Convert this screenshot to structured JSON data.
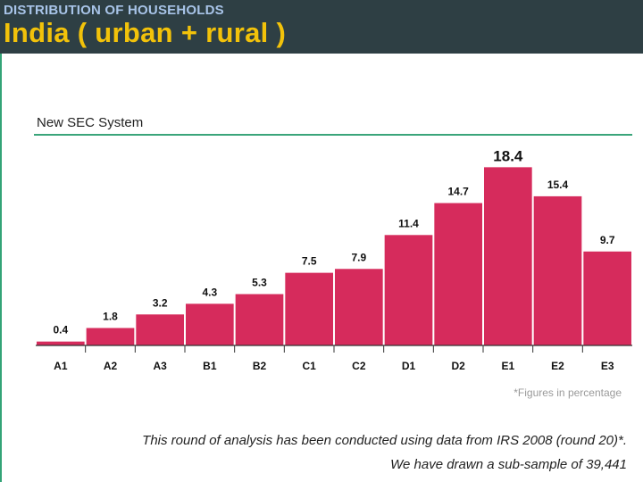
{
  "header": {
    "subtitle": "DISTRIBUTION OF HOUSEHOLDS",
    "title": "India ( urban + rural )"
  },
  "section_title": "New SEC System",
  "footnote": "*Figures in percentage",
  "captions": [
    "This round of analysis has been conducted using data from IRS 2008 (round 20)*.",
    "We have drawn a sub-sample of 39,441"
  ],
  "colors": {
    "bar": "#d62b5c",
    "header_bg": "#2e3f44",
    "accent_green": "#3aa57a",
    "title_yellow": "#f2c20a"
  },
  "chart_data": {
    "type": "bar",
    "title": "New SEC System",
    "xlabel": "",
    "ylabel": "",
    "unit": "percentage",
    "ylim": [
      0,
      20
    ],
    "categories": [
      "A1",
      "A2",
      "A3",
      "B1",
      "B2",
      "C1",
      "C2",
      "D1",
      "D2",
      "E1",
      "E2",
      "E3"
    ],
    "values": [
      0.4,
      1.8,
      3.2,
      4.3,
      5.3,
      7.5,
      7.9,
      11.4,
      14.7,
      18.4,
      15.4,
      9.7
    ],
    "labels": [
      "0.4",
      "1.8",
      "3.2",
      "4.3",
      "5.3",
      "7.5",
      "7.9",
      "11.4",
      "14.7",
      "18.4",
      "15.4",
      "9.7"
    ],
    "highlight_max": true,
    "grid": false,
    "legend": "none"
  }
}
